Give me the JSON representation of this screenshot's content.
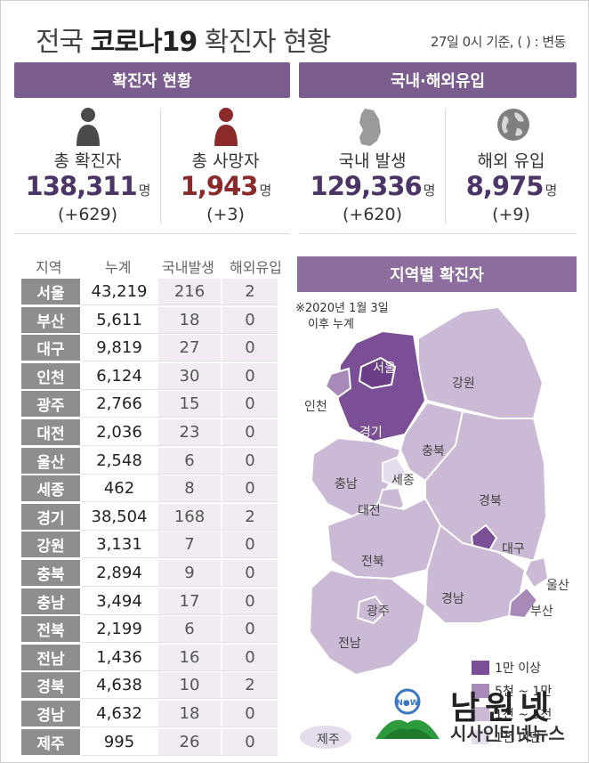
{
  "title": {
    "prefix": "전국 ",
    "bold": "코로나19",
    "suffix": " 확진자 현황"
  },
  "subtitle": "27일 0시 기준, ( ) : 변동",
  "sections": {
    "left": "확진자 현황",
    "right": "국내·해외유입",
    "map": "지역별 확진자"
  },
  "stats": [
    {
      "label": "총 확진자",
      "value": "138,311",
      "unit": "명",
      "change": "(+629)",
      "color": "#4b3566"
    },
    {
      "label": "총 사망자",
      "value": "1,943",
      "unit": "명",
      "change": "(+3)",
      "color": "#8a2a2a"
    },
    {
      "label": "국내 발생",
      "value": "129,336",
      "unit": "명",
      "change": "(+620)",
      "color": "#4b3566"
    },
    {
      "label": "해외 유입",
      "value": "8,975",
      "unit": "명",
      "change": "(+9)",
      "color": "#4b3566"
    }
  ],
  "map_note": {
    "line1": "※2020년 1월 3일",
    "line2": "이후 누계"
  },
  "map_labels": {
    "seoul": "서울",
    "incheon": "인천",
    "gyeonggi": "경기",
    "gangwon": "강원",
    "chungbuk": "충북",
    "sejong": "세종",
    "chungnam": "충남",
    "daejeon": "대전",
    "gyeongbuk": "경북",
    "daegu": "대구",
    "jeonbuk": "전북",
    "ulsan": "울산",
    "busan": "부산",
    "gyeongnam": "경남",
    "gwangju": "광주",
    "jeonnam": "전남",
    "jeju": "제주"
  },
  "legend": [
    {
      "label": "1만 이상",
      "color": "#7a4f96"
    },
    {
      "label": "5천 ~ 1만",
      "color": "#a88ab8"
    },
    {
      "label": "1천 ~ 5천",
      "color": "#cbbad6"
    },
    {
      "label": "1천 미만",
      "color": "#e6ddec"
    }
  ],
  "watermark": {
    "name": "남원넷",
    "sub": "시사인터넷뉴스"
  },
  "chart_data": {
    "type": "table",
    "columns": [
      "지역",
      "누계",
      "국내발생",
      "해외유입"
    ],
    "rows": [
      [
        "서울",
        "43,219",
        "216",
        "2"
      ],
      [
        "부산",
        "5,611",
        "18",
        "0"
      ],
      [
        "대구",
        "9,819",
        "27",
        "0"
      ],
      [
        "인천",
        "6,124",
        "30",
        "0"
      ],
      [
        "광주",
        "2,766",
        "15",
        "0"
      ],
      [
        "대전",
        "2,036",
        "23",
        "0"
      ],
      [
        "울산",
        "2,548",
        "6",
        "0"
      ],
      [
        "세종",
        "462",
        "8",
        "0"
      ],
      [
        "경기",
        "38,504",
        "168",
        "2"
      ],
      [
        "강원",
        "3,131",
        "7",
        "0"
      ],
      [
        "충북",
        "2,894",
        "9",
        "0"
      ],
      [
        "충남",
        "3,494",
        "17",
        "0"
      ],
      [
        "전북",
        "2,199",
        "6",
        "0"
      ],
      [
        "전남",
        "1,436",
        "16",
        "0"
      ],
      [
        "경북",
        "4,638",
        "10",
        "2"
      ],
      [
        "경남",
        "4,632",
        "18",
        "0"
      ],
      [
        "제주",
        "995",
        "26",
        "0"
      ]
    ]
  }
}
